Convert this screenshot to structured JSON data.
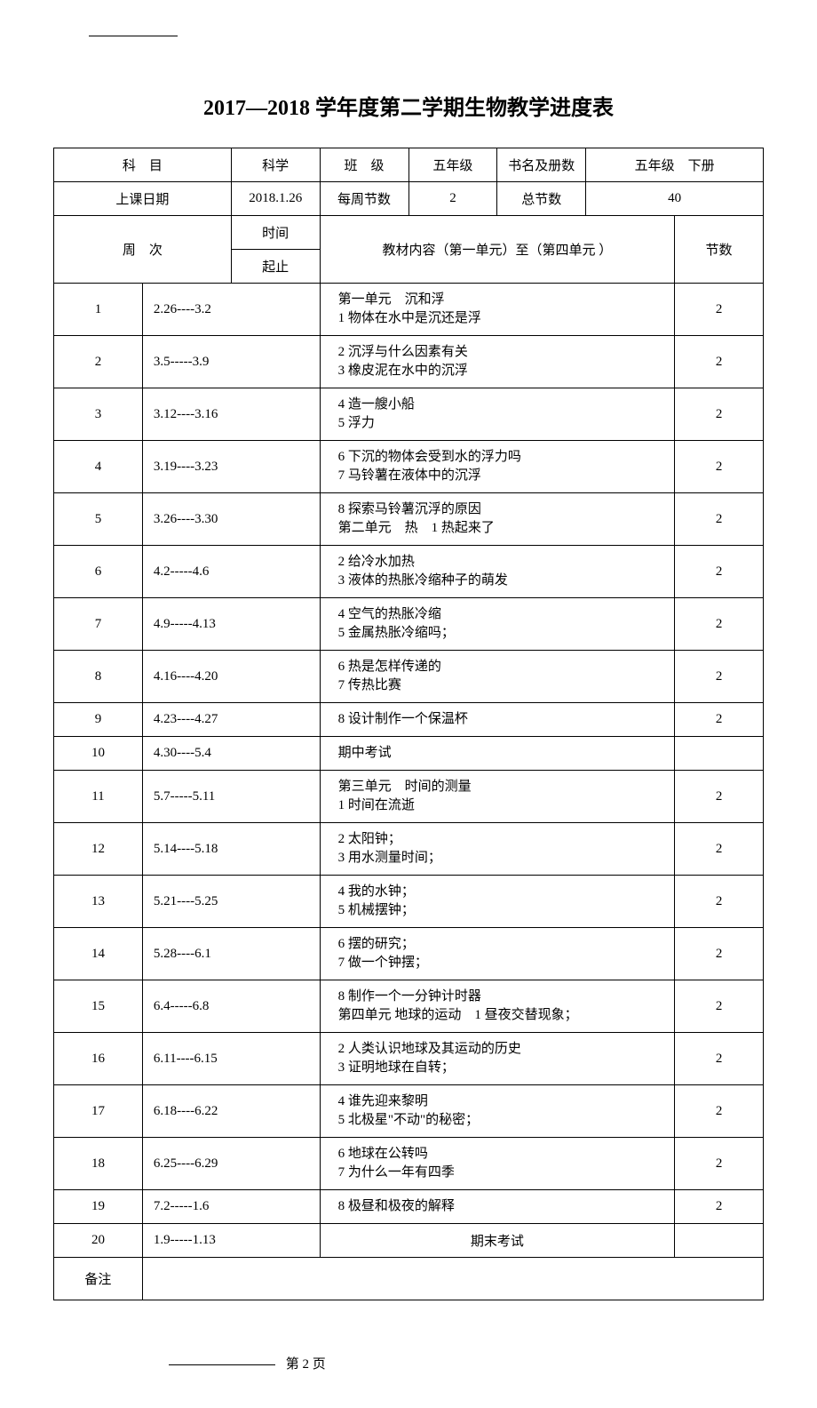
{
  "title": "2017—2018 学年度第二学期生物教学进度表",
  "header": {
    "subject_label": "科　目",
    "subject_value": "科学",
    "class_label": "班　级",
    "class_value": "五年级",
    "book_label": "书名及册数",
    "book_value": "五年级　下册",
    "date_label": "上课日期",
    "date_value": "2018.1.26",
    "weekly_label": "每周节数",
    "weekly_value": "2",
    "total_label": "总节数",
    "total_value": "40",
    "week_label": "周　次",
    "time_label": "时间",
    "range_label": "起止",
    "material_label": "教材内容（第一单元）至（第四单元 ）",
    "count_label": "节数"
  },
  "rows": [
    {
      "w": "1",
      "d": "2.26----3.2",
      "c": "第一单元　沉和浮\n1 物体在水中是沉还是浮",
      "n": "2"
    },
    {
      "w": "2",
      "d": "3.5-----3.9",
      "c": "2 沉浮与什么因素有关\n3 橡皮泥在水中的沉浮",
      "n": "2"
    },
    {
      "w": "3",
      "d": "3.12----3.16",
      "c": "4 造一艘小船\n5 浮力",
      "n": "2"
    },
    {
      "w": "4",
      "d": "3.19----3.23",
      "c": "6 下沉的物体会受到水的浮力吗\n7 马铃薯在液体中的沉浮",
      "n": "2"
    },
    {
      "w": "5",
      "d": "3.26----3.30",
      "c": "8 探索马铃薯沉浮的原因\n第二单元　热　1 热起来了",
      "n": "2"
    },
    {
      "w": "6",
      "d": "4.2-----4.6",
      "c": "2 给冷水加热\n3 液体的热胀冷缩种子的萌发",
      "n": "2"
    },
    {
      "w": "7",
      "d": "4.9-----4.13",
      "c": "4 空气的热胀冷缩\n5 金属热胀冷缩吗；",
      "n": "2"
    },
    {
      "w": "8",
      "d": "4.16----4.20",
      "c": "6 热是怎样传递的\n7 传热比赛",
      "n": "2"
    },
    {
      "w": "9",
      "d": "4.23----4.27",
      "c": "8 设计制作一个保温杯",
      "n": "2"
    },
    {
      "w": "10",
      "d": "4.30----5.4",
      "c": "期中考试",
      "n": ""
    },
    {
      "w": "11",
      "d": "5.7-----5.11",
      "c": "第三单元　时间的测量\n1 时间在流逝",
      "n": "2"
    },
    {
      "w": "12",
      "d": "5.14----5.18",
      "c": "2 太阳钟；\n3 用水测量时间；",
      "n": "2"
    },
    {
      "w": "13",
      "d": "5.21----5.25",
      "c": "4 我的水钟；\n5 机械摆钟；",
      "n": "2"
    },
    {
      "w": "14",
      "d": "5.28----6.1",
      "c": "6 摆的研究；\n7 做一个钟摆；",
      "n": "2"
    },
    {
      "w": "15",
      "d": "6.4-----6.8",
      "c": "8 制作一个一分钟计时器\n第四单元 地球的运动　1 昼夜交替现象；",
      "n": "2"
    },
    {
      "w": "16",
      "d": "6.11----6.15",
      "c": "2 人类认识地球及其运动的历史\n3 证明地球在自转；",
      "n": "2"
    },
    {
      "w": "17",
      "d": "6.18----6.22",
      "c": "4 谁先迎来黎明\n5 北极星\"不动\"的秘密；",
      "n": "2"
    },
    {
      "w": "18",
      "d": "6.25----6.29",
      "c": "6 地球在公转吗\n7 为什么一年有四季",
      "n": "2"
    },
    {
      "w": "19",
      "d": "7.2-----1.6",
      "c": "8 极昼和极夜的解释",
      "n": "2"
    },
    {
      "w": "20",
      "d": "1.9-----1.13",
      "c": "期末考试",
      "n": "",
      "center": true
    }
  ],
  "notes_label": "备注",
  "footer": {
    "page_label": "第 2 页"
  }
}
